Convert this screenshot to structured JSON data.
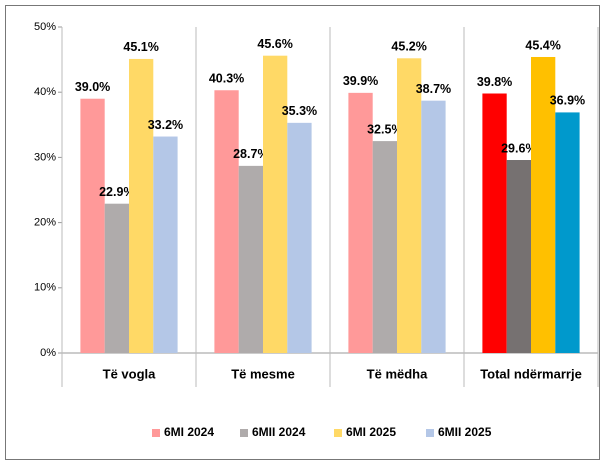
{
  "chart_data": {
    "type": "bar",
    "categories": [
      "Të vogla",
      "Të mesme",
      "Të mëdha",
      "Total ndërmarrje"
    ],
    "series": [
      {
        "name": "6MI 2024",
        "colors": [
          "#ff9999",
          "#ff9999",
          "#ff9999",
          "#ff0000"
        ],
        "values": [
          39.0,
          40.3,
          39.9,
          39.8
        ],
        "value_labels": [
          "39.0%",
          "40.3%",
          "39.9%",
          "39.8%"
        ]
      },
      {
        "name": "6MII 2024",
        "colors": [
          "#afabab",
          "#afabab",
          "#afabab",
          "#767171"
        ],
        "values": [
          22.9,
          28.7,
          32.5,
          29.6
        ],
        "value_labels": [
          "22.9%",
          "28.7%",
          "32.5%",
          "29.6%"
        ]
      },
      {
        "name": "6MI 2025",
        "colors": [
          "#ffd966",
          "#ffd966",
          "#ffd966",
          "#ffc000"
        ],
        "values": [
          45.1,
          45.6,
          45.2,
          45.4
        ],
        "value_labels": [
          "45.1%",
          "45.6%",
          "45.2%",
          "45.4%"
        ]
      },
      {
        "name": "6MII 2025",
        "colors": [
          "#b4c7e7",
          "#b4c7e7",
          "#b4c7e7",
          "#0099cc"
        ],
        "values": [
          33.2,
          35.3,
          38.7,
          36.9
        ],
        "value_labels": [
          "33.2%",
          "35.3%",
          "38.7%",
          "36.9%"
        ]
      }
    ],
    "ylim": [
      0,
      50
    ],
    "yticks": [
      {
        "value": 0,
        "label": "0%"
      },
      {
        "value": 10,
        "label": "10%"
      },
      {
        "value": 20,
        "label": "20%"
      },
      {
        "value": 30,
        "label": "30%"
      },
      {
        "value": 40,
        "label": "40%"
      },
      {
        "value": 50,
        "label": "50%"
      }
    ],
    "legend": "bottom"
  }
}
